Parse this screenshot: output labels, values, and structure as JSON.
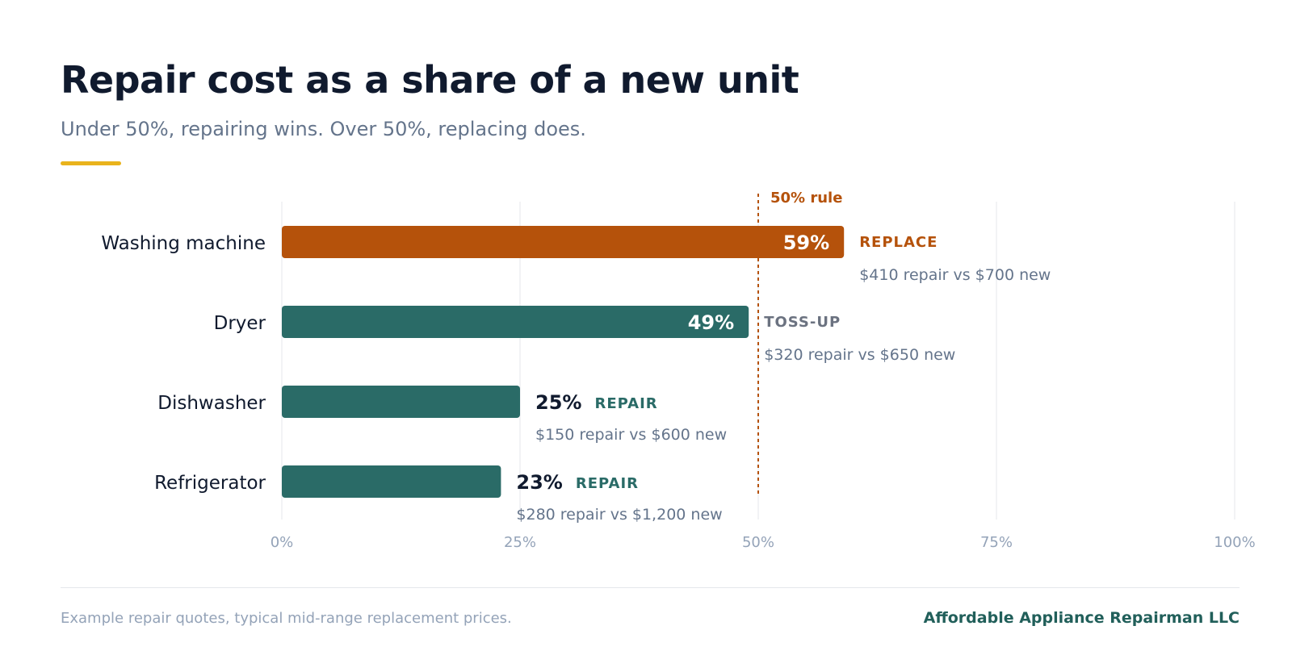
{
  "header": {
    "title": "Repair cost as a share of a new unit",
    "subtitle": "Under 50%, repairing wins. Over 50%, replacing does."
  },
  "footer": {
    "note": "Example repair quotes, typical mid-range replacement prices.",
    "brand": "Affordable Appliance Repairman LLC"
  },
  "colors": {
    "replace": "#b5520b",
    "repair": "#2a6b67",
    "tossup_label": "#6b7280",
    "rule_line": "#b5520b",
    "accent": "#e9b31c",
    "grid": "#e5e7eb",
    "tick_text": "#94a3b8",
    "detail_text": "#64748b",
    "category_text": "#101a2e"
  },
  "chart_data": {
    "type": "bar",
    "orientation": "horizontal",
    "xlim": [
      0,
      100
    ],
    "x_ticks": [
      0,
      25,
      50,
      75,
      100
    ],
    "x_tick_labels": [
      "0%",
      "25%",
      "50%",
      "75%",
      "100%"
    ],
    "grid": true,
    "reference_line": {
      "value": 50,
      "label": "50% rule"
    },
    "categories": [
      "Washing machine",
      "Dryer",
      "Dishwasher",
      "Refrigerator"
    ],
    "values": [
      59,
      49,
      25,
      23
    ],
    "value_labels": [
      "59%",
      "49%",
      "25%",
      "23%"
    ],
    "verdicts": [
      "REPLACE",
      "TOSS-UP",
      "REPAIR",
      "REPAIR"
    ],
    "verdict_keys": [
      "replace",
      "tossup",
      "repair",
      "repair"
    ],
    "details": [
      "$410 repair vs $700 new",
      "$320 repair vs $650 new",
      "$150 repair vs $600 new",
      "$280 repair vs $1,200 new"
    ]
  }
}
